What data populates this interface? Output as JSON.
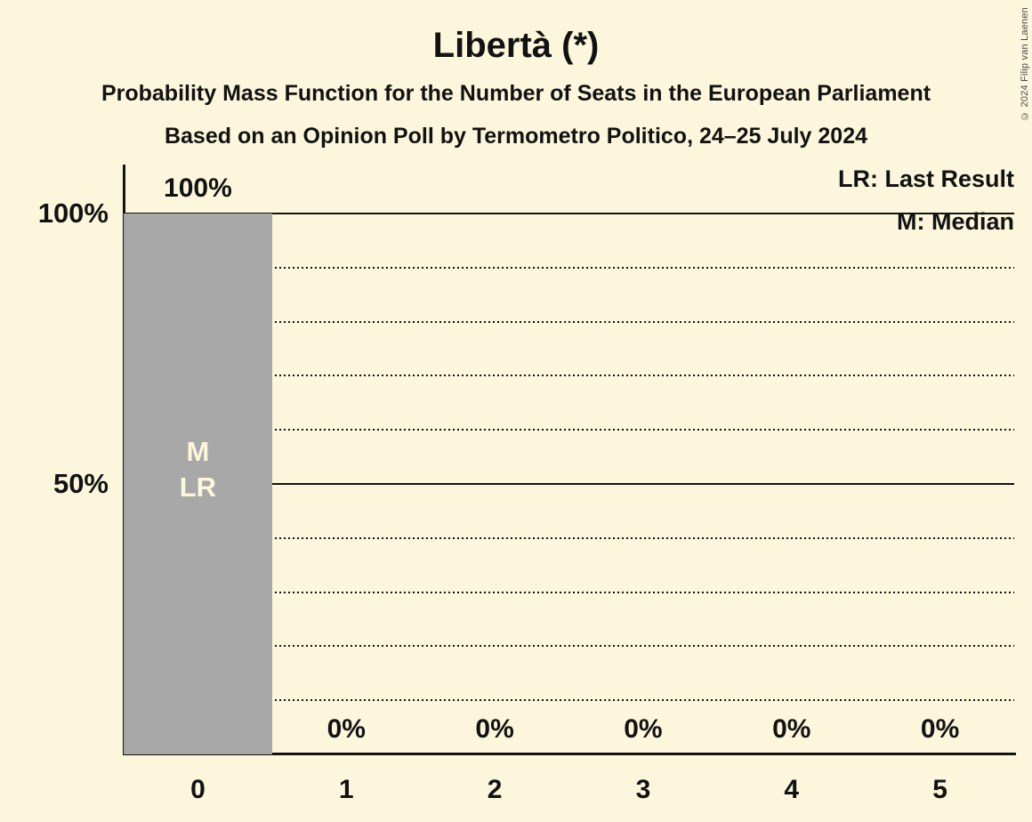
{
  "page": {
    "copyright": "© 2024 Filip van Laenen",
    "background_color": "#FCF7DC"
  },
  "header": {
    "title": "Libertà (*)",
    "subtitle1": "Probability Mass Function for the Number of Seats in the European Parliament",
    "subtitle2": "Based on an Opinion Poll by Termometro Politico, 24–25 July 2024"
  },
  "legend": {
    "lr": "LR: Last Result",
    "m": "M: Median"
  },
  "chart_data": {
    "type": "bar",
    "title": "Libertà (*)",
    "xlabel": "Number of Seats in the European Parliament",
    "ylabel": "Probability",
    "categories": [
      "0",
      "1",
      "2",
      "3",
      "4",
      "5"
    ],
    "values": [
      100,
      0,
      0,
      0,
      0,
      0
    ],
    "bar_value_labels": [
      "100%",
      "0%",
      "0%",
      "0%",
      "0%",
      "0%"
    ],
    "bar_inner_labels": [
      [
        "M",
        "LR"
      ],
      [],
      [],
      [],
      [],
      []
    ],
    "median_seats": 0,
    "last_result_seats": 0,
    "ylim": [
      0,
      100
    ],
    "y_axis_ticks": [
      {
        "label": "100%",
        "value": 100
      },
      {
        "label": "50%",
        "value": 50
      }
    ],
    "solid_gridlines": [
      100,
      50
    ],
    "dotted_gridlines": [
      90,
      80,
      70,
      60,
      40,
      30,
      20,
      10
    ],
    "grid": "horizontal",
    "legend_position": "top-right",
    "bar_color": "#A8A8A8",
    "inner_label_color": "#FCF7DC",
    "axis_color": "#121212"
  }
}
